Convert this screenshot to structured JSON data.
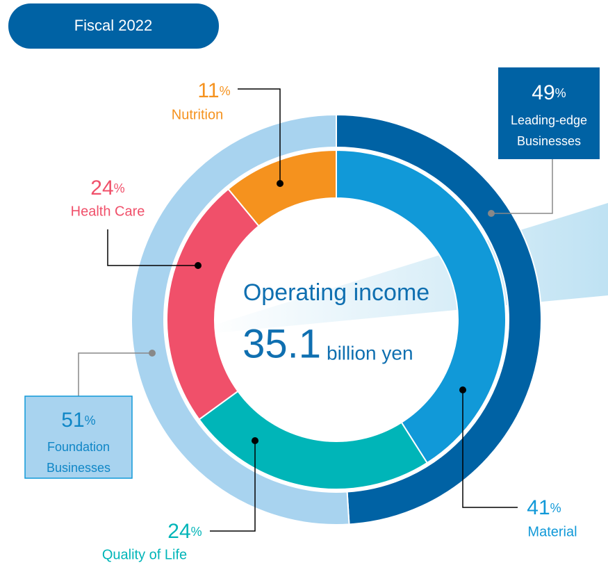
{
  "chart_data": {
    "type": "nested-donut",
    "title": "Fiscal 2022",
    "center_label": "Operating income",
    "center_value": 35.1,
    "center_unit": "billion yen",
    "unit": "%",
    "inner": {
      "categories": [
        "Material",
        "Quality of Life",
        "Health Care",
        "Nutrition"
      ],
      "values": [
        41,
        24,
        24,
        11
      ],
      "colors": [
        "#1199d8",
        "#00b5b8",
        "#f0506a",
        "#f5921e"
      ]
    },
    "outer": {
      "categories": [
        [
          "Leading-edge",
          "Businesses"
        ],
        [
          "Foundation",
          "Businesses"
        ]
      ],
      "values": [
        49,
        51
      ],
      "colors": [
        "#0062a4",
        "#a8d3ef"
      ]
    }
  }
}
